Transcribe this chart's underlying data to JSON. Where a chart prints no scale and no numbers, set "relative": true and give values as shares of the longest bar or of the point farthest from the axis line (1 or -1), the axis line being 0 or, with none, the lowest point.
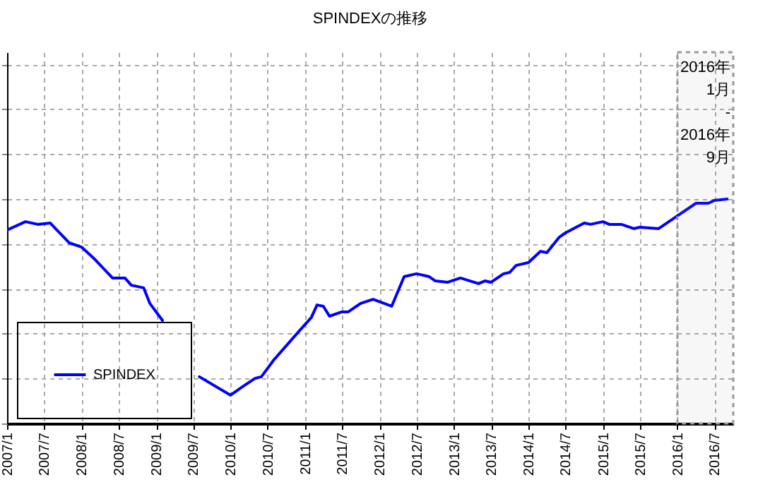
{
  "chart_data": {
    "type": "line",
    "title": "SPINDEXの推移",
    "relative": true,
    "x": [
      "2007-01",
      "2007-04",
      "2007-06",
      "2007-08",
      "2007-11",
      "2008-01",
      "2008-03",
      "2008-06",
      "2008-08",
      "2008-09",
      "2008-11",
      "2008-12",
      "2009-02",
      "2009-03",
      "2009-04",
      "2009-05",
      "2009-08",
      "2010-01",
      "2010-03",
      "2010-05",
      "2010-06",
      "2010-08",
      "2010-12",
      "2011-02",
      "2011-03",
      "2011-04",
      "2011-05",
      "2011-07",
      "2011-08",
      "2011-10",
      "2011-12",
      "2012-03",
      "2012-05",
      "2012-07",
      "2012-09",
      "2012-10",
      "2012-12",
      "2013-02",
      "2013-05",
      "2013-06",
      "2013-07",
      "2013-09",
      "2013-10",
      "2013-11",
      "2014-01",
      "2014-03",
      "2014-04",
      "2014-06",
      "2014-07",
      "2014-10",
      "2014-11",
      "2015-01",
      "2015-02",
      "2015-04",
      "2015-06",
      "2015-07",
      "2015-10",
      "2015-11",
      "2016-01",
      "2016-04",
      "2016-06",
      "2016-07",
      "2016-09"
    ],
    "series": [
      {
        "name": "SPINDEX",
        "color": "#0000ff",
        "values": [
          0.862,
          0.899,
          0.887,
          0.893,
          0.805,
          0.786,
          0.736,
          0.648,
          0.648,
          0.616,
          0.604,
          0.535,
          0.459,
          null,
          null,
          null,
          0.208,
          0.126,
          0.164,
          0.201,
          0.208,
          0.283,
          0.409,
          0.472,
          0.528,
          0.522,
          0.478,
          0.497,
          0.497,
          0.535,
          0.553,
          0.522,
          0.654,
          0.667,
          0.654,
          0.635,
          0.629,
          0.648,
          0.623,
          0.635,
          0.629,
          0.667,
          0.673,
          0.704,
          0.717,
          0.767,
          0.761,
          0.83,
          0.849,
          0.893,
          0.887,
          0.899,
          0.887,
          0.887,
          0.868,
          0.874,
          0.868,
          0.887,
          0.925,
          0.981,
          0.981,
          0.994,
          1
        ]
      }
    ],
    "xlim": [
      "2007-01",
      "2016-10"
    ],
    "xticks": [
      {
        "value": "2007-01",
        "label": "2007/1"
      },
      {
        "value": "2007-07",
        "label": "2007/7"
      },
      {
        "value": "2008-01",
        "label": "2008/1"
      },
      {
        "value": "2008-07",
        "label": "2008/7"
      },
      {
        "value": "2009-01",
        "label": "2009/1"
      },
      {
        "value": "2009-07",
        "label": "2009/7"
      },
      {
        "value": "2010-01",
        "label": "2010/1"
      },
      {
        "value": "2010-07",
        "label": "2010/7"
      },
      {
        "value": "2011-01",
        "label": "2011/1"
      },
      {
        "value": "2011-07",
        "label": "2011/7"
      },
      {
        "value": "2012-01",
        "label": "2012/1"
      },
      {
        "value": "2012-07",
        "label": "2012/7"
      },
      {
        "value": "2013-01",
        "label": "2013/1"
      },
      {
        "value": "2013-07",
        "label": "2013/7"
      },
      {
        "value": "2014-01",
        "label": "2014/1"
      },
      {
        "value": "2014-07",
        "label": "2014/7"
      },
      {
        "value": "2015-01",
        "label": "2015/1"
      },
      {
        "value": "2015-07",
        "label": "2015/7"
      },
      {
        "value": "2016-01",
        "label": "2016/1"
      },
      {
        "value": "2016-07",
        "label": "2016/7"
      }
    ],
    "bands": [
      {
        "axis": "x",
        "from": "2016-01",
        "to": "2016-10",
        "label": "2016年\n1月\n-\n2016年\n9月"
      }
    ],
    "grid": true,
    "legend": "bottom left",
    "line_style": "solid",
    "marker": "none"
  }
}
